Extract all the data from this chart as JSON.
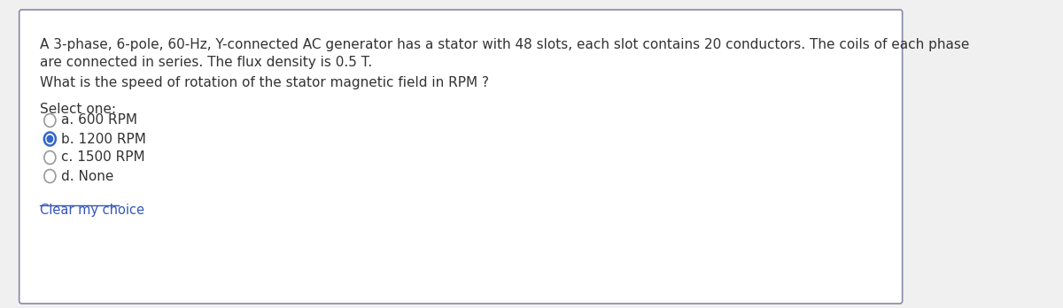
{
  "description_line1": "A 3-phase, 6-pole, 60-Hz, Y-connected AC generator has a stator with 48 slots, each slot contains 20 conductors. The coils of each phase",
  "description_line2": "are connected in series. The flux density is 0.5 T.",
  "question": "What is the speed of rotation of the stator magnetic field in RPM ?",
  "select_one_label": "Select one:",
  "options": [
    {
      "key": "a",
      "text": "a. 600 RPM",
      "selected": false
    },
    {
      "key": "b",
      "text": "b. 1200 RPM",
      "selected": true
    },
    {
      "key": "c",
      "text": "c. 1500 RPM",
      "selected": false
    },
    {
      "key": "d",
      "text": "d. None",
      "selected": false
    }
  ],
  "clear_link": "Clear my choice",
  "bg_color": "#ffffff",
  "border_color": "#8888aa",
  "text_color": "#333333",
  "link_color": "#3355bb",
  "radio_outer_color": "#999999",
  "radio_selected_border": "#3366cc",
  "radio_selected_fill": "#3366cc",
  "font_size_body": 11,
  "font_size_small": 10.5
}
